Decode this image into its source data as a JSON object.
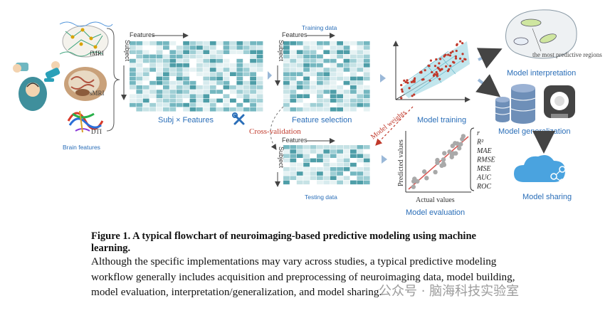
{
  "labels": {
    "fmri": "fMRI",
    "smri": "sMRI",
    "dti": "DTI",
    "brain_features": "Brain features",
    "features": "Features",
    "subject": "Subject",
    "subj_features": "Subj × Features",
    "training_data": "Training data",
    "feature_selection": "Feature selection",
    "testing_data": "Testing data",
    "cross_validation": "Cross-validation",
    "model_weights": "Model weights",
    "model_training": "Model training",
    "predicted_values": "Predicted values",
    "actual_values": "Actual values",
    "model_evaluation": "Model evaluation",
    "metrics": [
      "r",
      "R²",
      "MAE",
      "RMSE",
      "MSE",
      "AUC",
      "ROC"
    ],
    "most_predictive_regions": "the most predictive regions",
    "model_interpretation": "Model interpretation",
    "model_generalization": "Model generalization",
    "model_sharing": "Model sharing"
  },
  "caption": {
    "title": "Figure 1. A typical flowchart of neuroimaging-based predictive modeling using machine learning.",
    "body": "Although the specific implementations may vary across studies, a typical predictive modeling workflow generally includes acquisition and preprocessing of neuroimaging data, model building, model evaluation, interpretation/generalization, and model sharing."
  },
  "watermark": "公众号 · 脑海科技实验室",
  "colors": {
    "accent_blue": "#2a6eb8",
    "accent_red": "#c0392b",
    "teal": "#5aa8b4"
  }
}
